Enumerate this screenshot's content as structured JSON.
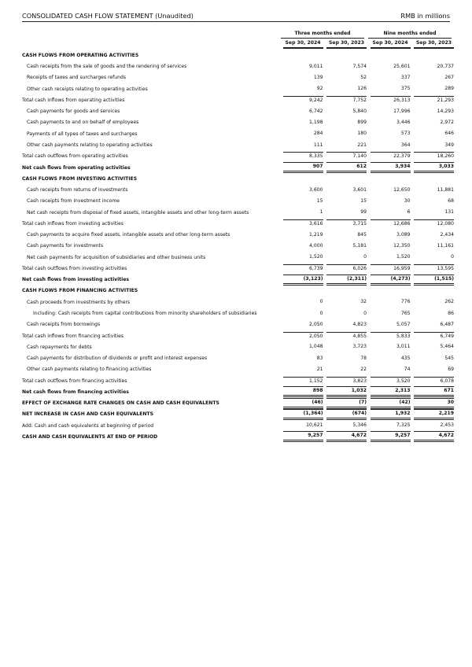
{
  "header": {
    "title": "CONSOLIDATED CASH FLOW STATEMENT (Unaudited)",
    "unit": "RMB in millions"
  },
  "column_groups": [
    "Three months ended",
    "Nine months ended"
  ],
  "columns": [
    "Sep 30, 2024",
    "Sep 30, 2023",
    "Sep 30, 2024",
    "Sep 30, 2023"
  ],
  "rows": [
    {
      "label": "CASH FLOWS FROM OPERATING ACTIVITIES",
      "type": "section",
      "values": []
    },
    {
      "label": "Cash receipts from the sale of goods and the rendering of services",
      "type": "item",
      "values": [
        "9,011",
        "7,574",
        "25,601",
        "20,737"
      ]
    },
    {
      "label": "Receipts of taxes and surcharges refunds",
      "type": "item",
      "values": [
        "139",
        "52",
        "337",
        "267"
      ]
    },
    {
      "label": "Other cash receipts relating to operating activities",
      "type": "item",
      "values": [
        "92",
        "126",
        "375",
        "289"
      ]
    },
    {
      "label": "Total cash inflows from operating activities",
      "type": "total",
      "values": [
        "9,242",
        "7,752",
        "26,313",
        "21,293"
      ]
    },
    {
      "label": "Cash payments for goods and services",
      "type": "item",
      "values": [
        "6,742",
        "5,840",
        "17,996",
        "14,293"
      ]
    },
    {
      "label": "Cash payments to and on behalf of employees",
      "type": "item",
      "values": [
        "1,198",
        "899",
        "3,446",
        "2,972"
      ]
    },
    {
      "label": "Payments of all types of taxes and surcharges",
      "type": "item",
      "values": [
        "284",
        "180",
        "573",
        "646"
      ]
    },
    {
      "label": "Other cash payments relating to operating activities",
      "type": "item",
      "values": [
        "111",
        "221",
        "364",
        "349"
      ]
    },
    {
      "label": "Total cash outflows from operating activities",
      "type": "total",
      "values": [
        "8,335",
        "7,140",
        "22,379",
        "18,260"
      ]
    },
    {
      "label": "Net cash flows from operating activities",
      "type": "net",
      "values": [
        "907",
        "612",
        "3,934",
        "3,033"
      ]
    },
    {
      "label": "CASH FLOWS FROM INVESTING ACTIVITIES",
      "type": "section",
      "values": []
    },
    {
      "label": "Cash receipts from returns of investments",
      "type": "item",
      "values": [
        "3,600",
        "3,601",
        "12,650",
        "11,881"
      ]
    },
    {
      "label": "Cash receipts from investment income",
      "type": "item",
      "values": [
        "15",
        "15",
        "30",
        "68"
      ]
    },
    {
      "label": "Net cash receipts from disposal of fixed assets, intangible assets and other long-term assets",
      "type": "item",
      "values": [
        "1",
        "99",
        "6",
        "131"
      ]
    },
    {
      "label": "Total cash inflows from investing activities",
      "type": "total",
      "values": [
        "3,616",
        "3,715",
        "12,686",
        "12,080"
      ]
    },
    {
      "label": "Cash payments to acquire fixed assets, intangible assets and other long-term assets",
      "type": "item",
      "values": [
        "1,219",
        "845",
        "3,089",
        "2,434"
      ]
    },
    {
      "label": "Cash payments for investments",
      "type": "item",
      "values": [
        "4,000",
        "5,181",
        "12,350",
        "11,161"
      ]
    },
    {
      "label": "Net cash payments for acquisition of subsidiaries and other business units",
      "type": "item",
      "values": [
        "1,520",
        "0",
        "1,520",
        "0"
      ]
    },
    {
      "label": "Total cash outflows from investing activities",
      "type": "total",
      "values": [
        "6,739",
        "6,026",
        "16,959",
        "13,595"
      ]
    },
    {
      "label": "Net cash flows from investing activities",
      "type": "net",
      "values": [
        "(3,123)",
        "(2,311)",
        "(4,273)",
        "(1,515)"
      ]
    },
    {
      "label": "CASH FLOWS FROM FINANCING ACTIVITIES",
      "type": "section",
      "values": []
    },
    {
      "label": "Cash proceeds from investments by others",
      "type": "item",
      "values": [
        "0",
        "32",
        "776",
        "262"
      ]
    },
    {
      "label": "Including: Cash receipts from capital contributions from minority shareholders of subsidiaries",
      "type": "item deep",
      "values": [
        "0",
        "0",
        "765",
        "86"
      ]
    },
    {
      "label": "Cash receipts from borrowings",
      "type": "item",
      "values": [
        "2,050",
        "4,823",
        "5,057",
        "6,487"
      ]
    },
    {
      "label": "Total cash inflows from financing activities",
      "type": "total",
      "values": [
        "2,050",
        "4,855",
        "5,833",
        "6,749"
      ]
    },
    {
      "label": "Cash repayments for debts",
      "type": "item",
      "values": [
        "1,048",
        "3,723",
        "3,011",
        "5,464"
      ]
    },
    {
      "label": "Cash payments for distribution of dividends or profit and interest expenses",
      "type": "item",
      "values": [
        "83",
        "78",
        "435",
        "545"
      ]
    },
    {
      "label": "Other cash payments relating to financing activities",
      "type": "item",
      "values": [
        "21",
        "22",
        "74",
        "69"
      ]
    },
    {
      "label": "Total cash outflows from financing activities",
      "type": "total",
      "values": [
        "1,152",
        "3,823",
        "3,520",
        "6,078"
      ]
    },
    {
      "label": "Net cash flows from financing activities",
      "type": "net",
      "values": [
        "898",
        "1,032",
        "2,313",
        "671"
      ]
    },
    {
      "label": "EFFECT OF EXCHANGE RATE CHANGES ON CASH AND CASH EQUIVALENTS",
      "type": "net",
      "values": [
        "(46)",
        "(7)",
        "(42)",
        "30"
      ]
    },
    {
      "label": "NET INCREASE IN CASH AND CASH EQUIVALENTS",
      "type": "net",
      "values": [
        "(1,364)",
        "(674)",
        "1,932",
        "2,219"
      ]
    },
    {
      "label": "Add: Cash and cash equivalents at beginning of period",
      "type": "item0",
      "values": [
        "10,621",
        "5,346",
        "7,325",
        "2,453"
      ]
    },
    {
      "label": "CASH AND CASH EQUIVALENTS AT END OF PERIOD",
      "type": "net",
      "values": [
        "9,257",
        "4,672",
        "9,257",
        "4,672"
      ]
    }
  ]
}
